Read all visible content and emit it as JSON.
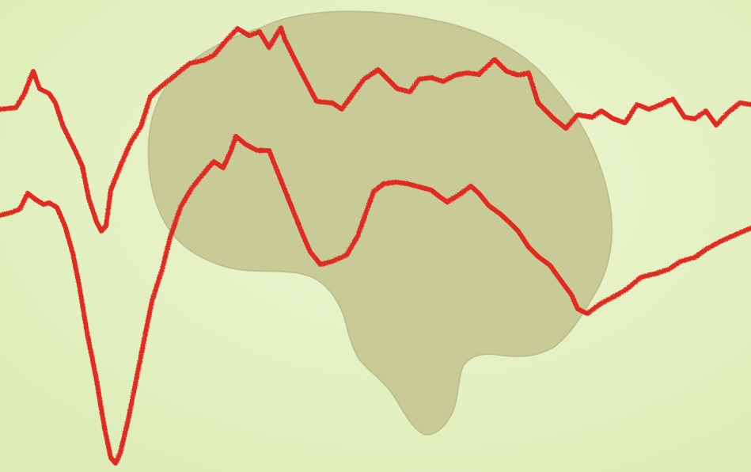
{
  "scene": {
    "description_tags": [
      "paper-background",
      "brain-silhouette",
      "trace-upper",
      "trace-lower"
    ],
    "colors": {
      "paper": "#e6f2c4",
      "paper_light": "#eef7d2",
      "paper_shadow": "#dcebb6",
      "brain": "#c8cb98",
      "brain_edge": "#bdc08c",
      "trace": "#e02a22"
    }
  }
}
